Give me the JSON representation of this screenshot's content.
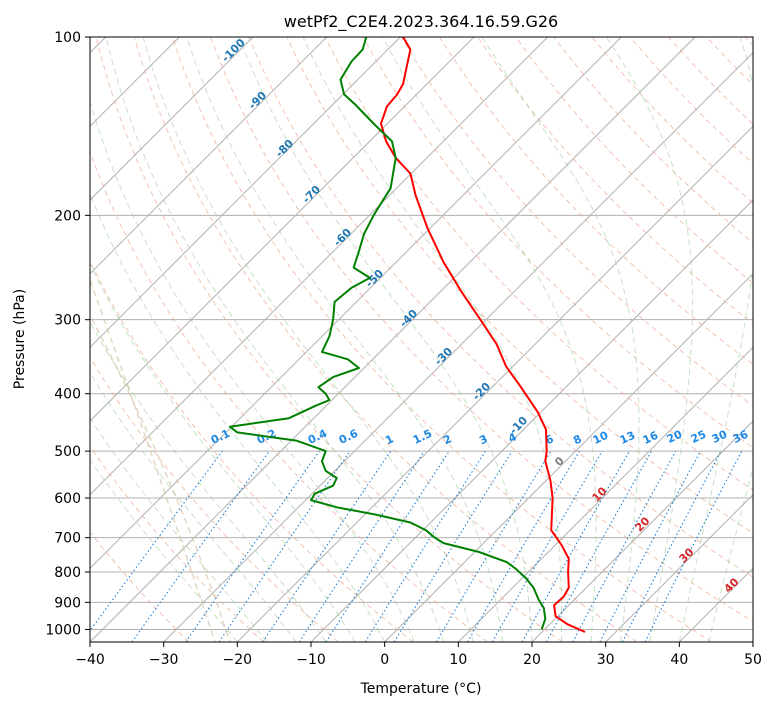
{
  "chart_data": {
    "type": "line",
    "title": "wetPf2_C2E4.2023.364.16.59.G26",
    "xlabel": "Temperature (°C)",
    "ylabel": "Pressure (hPa)",
    "xlim": [
      -40,
      50
    ],
    "ylim": [
      1050,
      100
    ],
    "y_scale": "log",
    "grid": true,
    "x_ticks": [
      "−40",
      "−30",
      "−20",
      "−10",
      "0",
      "10",
      "20",
      "30",
      "40",
      "50"
    ],
    "y_ticks": [
      "100",
      "200",
      "300",
      "400",
      "500",
      "600",
      "700",
      "800",
      "900",
      "1000"
    ],
    "series": [
      {
        "color": "#ff0000",
        "points": [
          [
            27.2,
            1010
          ],
          [
            24.8,
            980
          ],
          [
            23.2,
            950
          ],
          [
            23.0,
            910
          ],
          [
            24.3,
            880
          ],
          [
            25.0,
            850
          ],
          [
            24.9,
            800
          ],
          [
            25.0,
            760
          ],
          [
            24.0,
            720
          ],
          [
            22.6,
            680
          ],
          [
            22.7,
            640
          ],
          [
            22.8,
            600
          ],
          [
            22.5,
            560
          ],
          [
            21.8,
            520
          ],
          [
            22.0,
            500
          ],
          [
            21.9,
            460
          ],
          [
            20.8,
            430
          ],
          [
            18.5,
            390
          ],
          [
            16.5,
            360
          ],
          [
            15.2,
            330
          ],
          [
            13.0,
            300
          ],
          [
            10.5,
            270
          ],
          [
            8.0,
            240
          ],
          [
            5.8,
            210
          ],
          [
            4.2,
            185
          ],
          [
            3.5,
            170
          ],
          [
            1.5,
            160
          ],
          [
            0.2,
            150
          ],
          [
            -0.5,
            140
          ],
          [
            0.3,
            131
          ],
          [
            1.7,
            125
          ],
          [
            2.5,
            120
          ],
          [
            3.0,
            112
          ],
          [
            3.5,
            105
          ],
          [
            2.5,
            100
          ]
        ]
      },
      {
        "color": "#008000",
        "points": [
          [
            21.3,
            1000
          ],
          [
            21.8,
            960
          ],
          [
            21.6,
            920
          ],
          [
            20.9,
            890
          ],
          [
            20.2,
            850
          ],
          [
            19.2,
            820
          ],
          [
            17.8,
            790
          ],
          [
            16.6,
            770
          ],
          [
            12.8,
            740
          ],
          [
            8.0,
            715
          ],
          [
            6.8,
            700
          ],
          [
            5.6,
            680
          ],
          [
            3.5,
            660
          ],
          [
            -1.2,
            640
          ],
          [
            -6.5,
            622
          ],
          [
            -10.0,
            605
          ],
          [
            -9.5,
            590
          ],
          [
            -7.0,
            572
          ],
          [
            -6.5,
            555
          ],
          [
            -8.0,
            540
          ],
          [
            -8.5,
            520
          ],
          [
            -8.0,
            500
          ],
          [
            -12.0,
            480
          ],
          [
            -20.0,
            465
          ],
          [
            -21.0,
            455
          ],
          [
            -13.0,
            440
          ],
          [
            -9.5,
            420
          ],
          [
            -7.5,
            410
          ],
          [
            -8.0,
            400
          ],
          [
            -9.0,
            390
          ],
          [
            -7.0,
            375
          ],
          [
            -3.5,
            362
          ],
          [
            -5.0,
            350
          ],
          [
            -8.5,
            340
          ],
          [
            -7.5,
            320
          ],
          [
            -7.0,
            300
          ],
          [
            -6.8,
            280
          ],
          [
            -4.5,
            265
          ],
          [
            -2.0,
            255
          ],
          [
            -4.2,
            245
          ],
          [
            -3.5,
            230
          ],
          [
            -2.8,
            215
          ],
          [
            -1.5,
            200
          ],
          [
            0.8,
            180
          ],
          [
            1.5,
            160
          ],
          [
            1.0,
            150
          ],
          [
            -1.5,
            140
          ],
          [
            -4.0,
            130
          ],
          [
            -5.5,
            125
          ],
          [
            -6.0,
            118
          ],
          [
            -4.5,
            110
          ],
          [
            -3.0,
            105
          ],
          [
            -2.5,
            100
          ]
        ]
      }
    ],
    "dry_adiabat_labels": [
      "-100",
      "-90",
      "-80",
      "-70",
      "-60",
      "-50",
      "-40",
      "-30",
      "-20",
      "-10",
      "0",
      "10",
      "20",
      "30",
      "40"
    ],
    "mixing_ratio_labels": [
      "0.1",
      "0.2",
      "0.4",
      "0.6",
      "1",
      "1.5",
      "2",
      "3",
      "4",
      "6",
      "8",
      "10",
      "13",
      "16",
      "20",
      "25",
      "30",
      "36"
    ]
  }
}
